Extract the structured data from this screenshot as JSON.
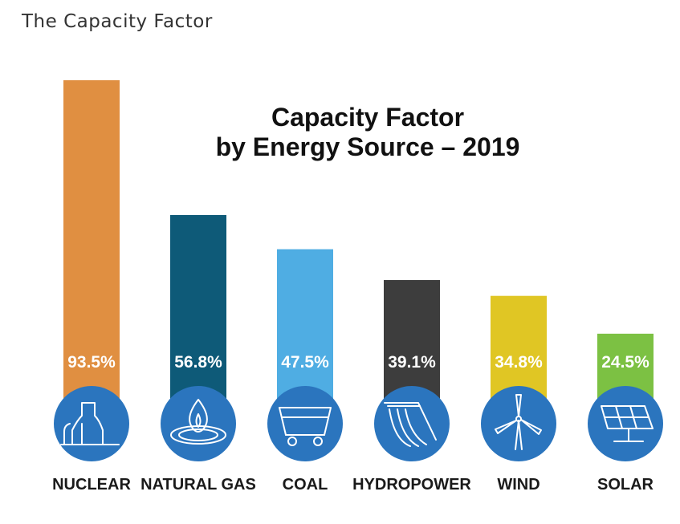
{
  "page": {
    "heading": "The Capacity Factor"
  },
  "chart_data": {
    "type": "bar",
    "title_lines": [
      "Capacity Factor",
      "by Energy Source – 2019"
    ],
    "categories": [
      "NUCLEAR",
      "NATURAL GAS",
      "COAL",
      "HYDROPOWER",
      "WIND",
      "SOLAR"
    ],
    "values": [
      93.5,
      56.8,
      47.5,
      39.1,
      34.8,
      24.5
    ],
    "value_labels": [
      "93.5%",
      "56.8%",
      "47.5%",
      "39.1%",
      "34.8%",
      "24.5%"
    ],
    "colors": [
      "#E08F41",
      "#0E5A78",
      "#4FADE3",
      "#3D3D3D",
      "#E0C624",
      "#7CC143"
    ],
    "icons": [
      "nuclear-plant-icon",
      "gas-flame-icon",
      "coal-cart-icon",
      "dam-icon",
      "wind-turbine-icon",
      "solar-panel-icon"
    ],
    "icon_circle_color": "#2B75BE",
    "ylim": [
      0,
      100
    ],
    "xlabel": "",
    "ylabel": "",
    "grid": false,
    "legend": "none"
  }
}
